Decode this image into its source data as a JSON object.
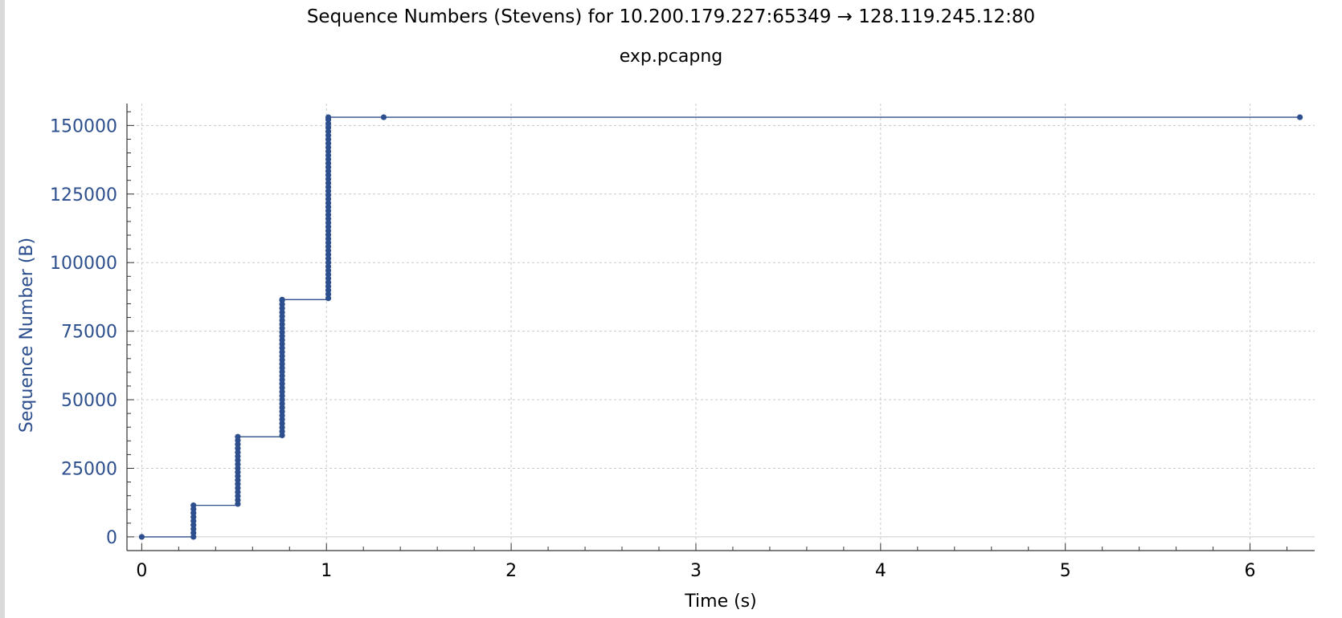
{
  "chart_data": {
    "type": "line",
    "title": "Sequence Numbers (Stevens) for 10.200.179.227:65349 → 128.119.245.12:80",
    "subtitle": "exp.pcapng",
    "xlabel": "Time (s)",
    "ylabel": "Sequence Number (B)",
    "xlim": [
      -0.08,
      6.35
    ],
    "ylim": [
      -5000,
      158000
    ],
    "x_ticks": [
      0,
      1,
      2,
      3,
      4,
      5,
      6
    ],
    "x_tick_labels": [
      "0",
      "1",
      "2",
      "3",
      "4",
      "5",
      "6"
    ],
    "y_ticks": [
      0,
      25000,
      50000,
      75000,
      100000,
      125000,
      150000
    ],
    "y_tick_labels": [
      "0",
      "25000",
      "50000",
      "75000",
      "100000",
      "125000",
      "150000"
    ],
    "grid": true,
    "line_color": "#2d4f8e",
    "series": [
      {
        "bursts": [
          {
            "t": 0.0,
            "from": 0,
            "to": 0
          },
          {
            "t": 0.28,
            "from": 0,
            "to": 11500
          },
          {
            "t": 0.52,
            "from": 12000,
            "to": 36500
          },
          {
            "t": 0.76,
            "from": 37000,
            "to": 86500
          },
          {
            "t": 1.01,
            "from": 87000,
            "to": 153000
          },
          {
            "t": 1.31,
            "from": 153000,
            "to": 153000
          },
          {
            "t": 6.27,
            "from": 153000,
            "to": 153000
          }
        ],
        "point_spacing": 1448
      }
    ]
  }
}
